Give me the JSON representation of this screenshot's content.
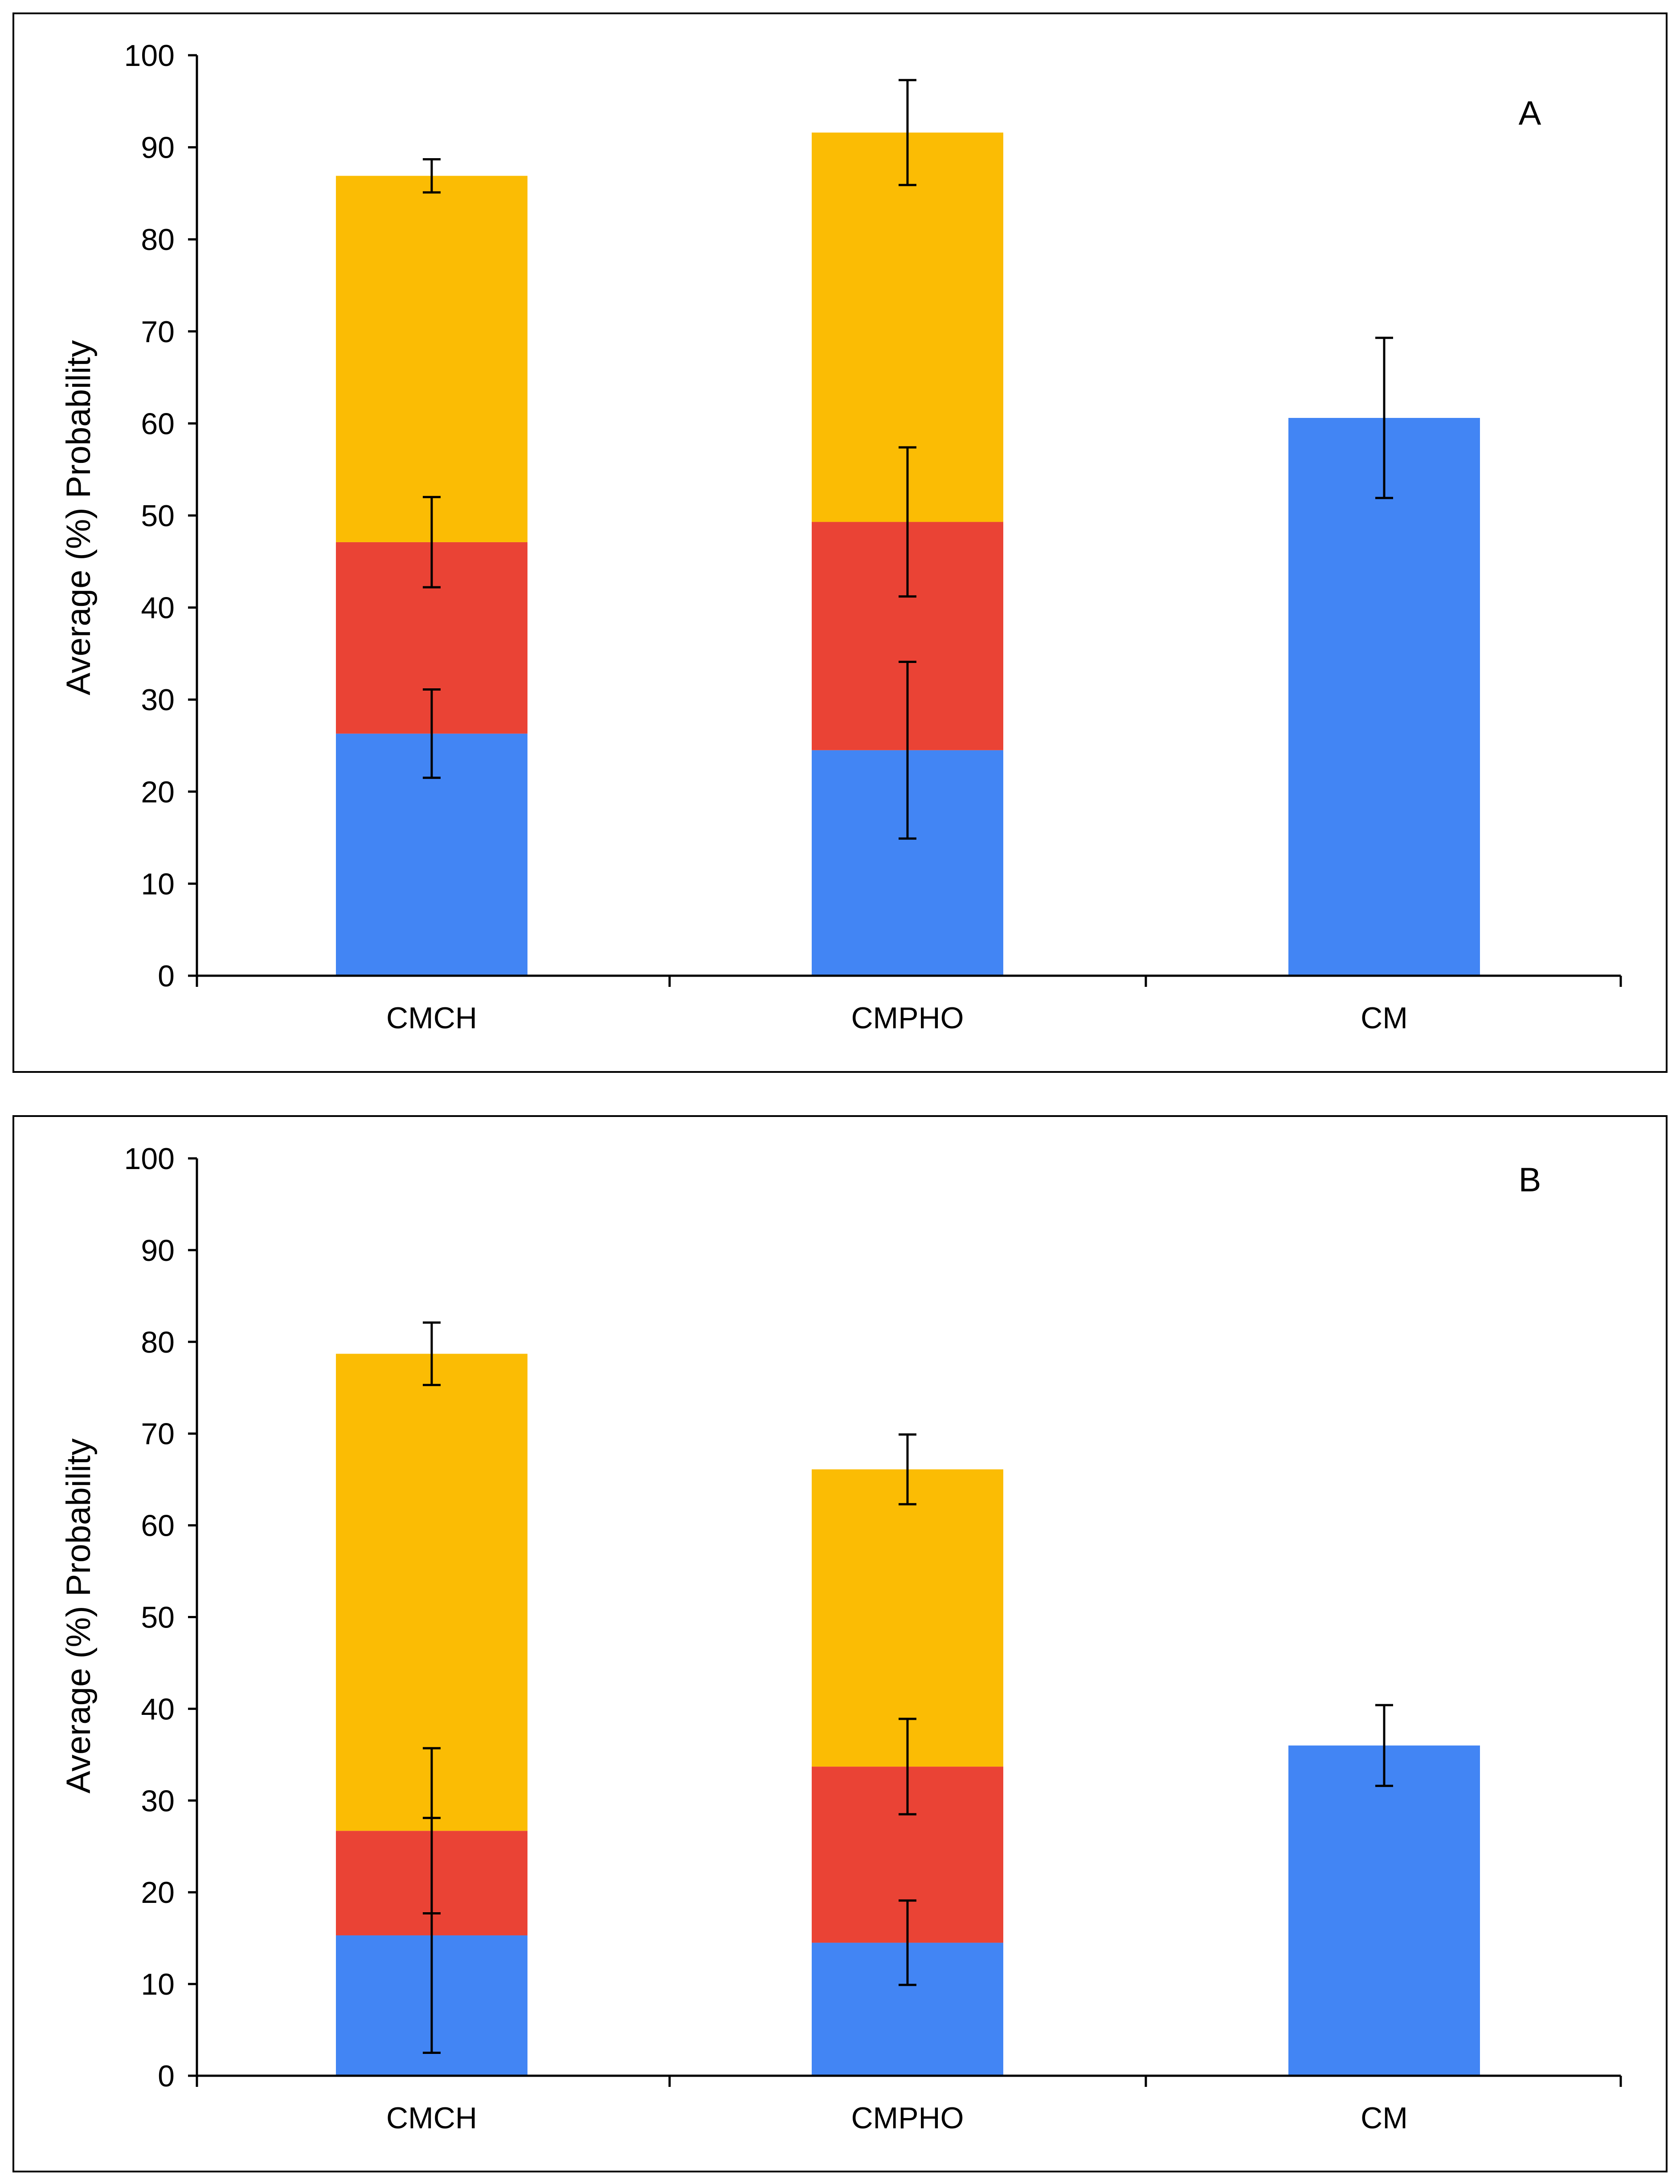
{
  "colors": {
    "blue": "#4285F4",
    "red": "#EA4335",
    "yellow": "#FBBC04",
    "axis": "#000000",
    "error_bar": "#000000"
  },
  "chart_data": [
    {
      "id": "A",
      "type": "bar",
      "stacked": true,
      "panel_label": "A",
      "title": "",
      "xlabel": "",
      "ylabel": "Average (%) Probability",
      "ylim": [
        0,
        100
      ],
      "yticks": [
        0,
        10,
        20,
        30,
        40,
        50,
        60,
        70,
        80,
        90,
        100
      ],
      "categories": [
        "CMCH",
        "CMPHO",
        "CM"
      ],
      "series": [
        {
          "name": "blue segment",
          "color": "#4285F4",
          "values": [
            26.3,
            24.5,
            60.6
          ],
          "error": [
            4.8,
            9.6,
            8.7
          ]
        },
        {
          "name": "red segment",
          "color": "#EA4335",
          "values": [
            20.8,
            24.8,
            0
          ],
          "error": [
            4.9,
            8.1,
            null
          ]
        },
        {
          "name": "yellow segment",
          "color": "#FBBC04",
          "values": [
            39.8,
            42.3,
            0
          ],
          "error": [
            1.8,
            5.7,
            null
          ]
        }
      ],
      "grid": false,
      "legend": "none"
    },
    {
      "id": "B",
      "type": "bar",
      "stacked": true,
      "panel_label": "B",
      "title": "",
      "xlabel": "",
      "ylabel": "Average (%) Probability",
      "ylim": [
        0,
        100
      ],
      "yticks": [
        0,
        10,
        20,
        30,
        40,
        50,
        60,
        70,
        80,
        90,
        100
      ],
      "categories": [
        "CMCH",
        "CMPHO",
        "CM"
      ],
      "series": [
        {
          "name": "blue segment",
          "color": "#4285F4",
          "values": [
            15.3,
            14.5,
            36.0
          ],
          "error": [
            12.8,
            4.6,
            4.4
          ]
        },
        {
          "name": "red segment",
          "color": "#EA4335",
          "values": [
            11.4,
            19.2,
            0
          ],
          "error": [
            9.0,
            5.2,
            null
          ]
        },
        {
          "name": "yellow segment",
          "color": "#FBBC04",
          "values": [
            52.0,
            32.4,
            0
          ],
          "error": [
            3.4,
            3.8,
            null
          ]
        }
      ],
      "grid": false,
      "legend": "none"
    }
  ]
}
